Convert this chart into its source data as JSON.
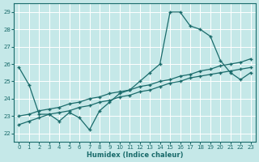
{
  "xlabel": "Humidex (Indice chaleur)",
  "background_color": "#c5e8e8",
  "grid_color": "#ffffff",
  "line_color": "#1a6b6b",
  "xlim": [
    -0.5,
    23.5
  ],
  "ylim": [
    21.5,
    29.5
  ],
  "xticks": [
    0,
    1,
    2,
    3,
    4,
    5,
    6,
    7,
    8,
    9,
    10,
    11,
    12,
    13,
    14,
    15,
    16,
    17,
    18,
    19,
    20,
    21,
    22,
    23
  ],
  "yticks": [
    22,
    23,
    24,
    25,
    26,
    27,
    28,
    29
  ],
  "line1_x": [
    0,
    1,
    2,
    3,
    4,
    5,
    6,
    7,
    8,
    9,
    10,
    11,
    12,
    13,
    14,
    15,
    16,
    17,
    18,
    19,
    20,
    21,
    22,
    23
  ],
  "line1_y": [
    25.8,
    24.8,
    23.1,
    23.1,
    22.7,
    23.2,
    22.9,
    22.2,
    23.3,
    23.8,
    24.3,
    24.5,
    25.0,
    25.5,
    26.0,
    29.0,
    29.0,
    28.2,
    28.0,
    27.6,
    26.2,
    25.5,
    25.1,
    25.5
  ],
  "line2_x": [
    0,
    1,
    2,
    3,
    4,
    5,
    6,
    7,
    8,
    9,
    10,
    11,
    12,
    13,
    14,
    15,
    16,
    17,
    18,
    19,
    20,
    21,
    22,
    23
  ],
  "line2_y": [
    22.5,
    22.7,
    22.9,
    23.1,
    23.2,
    23.3,
    23.5,
    23.6,
    23.8,
    23.9,
    24.1,
    24.2,
    24.4,
    24.5,
    24.7,
    24.9,
    25.0,
    25.2,
    25.3,
    25.4,
    25.5,
    25.6,
    25.7,
    25.8
  ],
  "line3_x": [
    0,
    1,
    2,
    3,
    4,
    5,
    6,
    7,
    8,
    9,
    10,
    11,
    12,
    13,
    14,
    15,
    16,
    17,
    18,
    19,
    20,
    21,
    22,
    23
  ],
  "line3_y": [
    23.0,
    23.1,
    23.3,
    23.4,
    23.5,
    23.7,
    23.8,
    24.0,
    24.1,
    24.3,
    24.4,
    24.5,
    24.7,
    24.8,
    25.0,
    25.1,
    25.3,
    25.4,
    25.6,
    25.7,
    25.9,
    26.0,
    26.1,
    26.3
  ]
}
